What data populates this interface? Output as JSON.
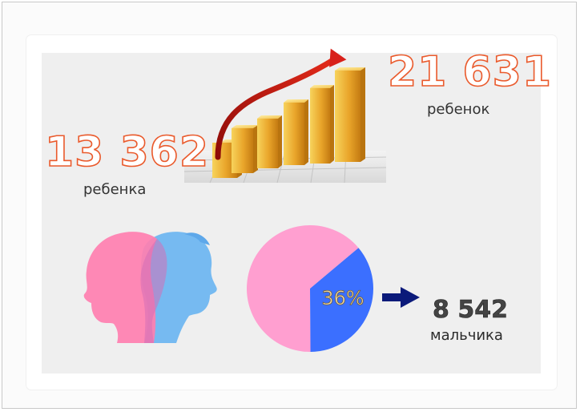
{
  "stats": {
    "before_value": "13 362",
    "before_caption": "ребенка",
    "after_value": "21 631",
    "after_caption": "ребенок",
    "boys_value": "8 542",
    "boys_caption": "мальчика"
  },
  "colors": {
    "number_outline": "#ea5a2c",
    "pie_girls": "#ff9fd0",
    "pie_boys": "#3b6fff",
    "girl_silhouette": "#ff7fb0",
    "boy_silhouette": "#6fb6f0",
    "arrow_dark": "#0b1a7a",
    "growth_arrow": "#cc1c12",
    "bars_gold": "#e8a72d"
  },
  "chart_data": [
    {
      "type": "pie",
      "labels": [
        "",
        ""
      ],
      "values": [
        64,
        36
      ],
      "slice_label": "36%",
      "colors": [
        "#ff9fd0",
        "#3b6fff"
      ]
    }
  ],
  "icons": [
    "growth-bars-icon",
    "girl-boy-silhouette-icon",
    "right-arrow-icon"
  ]
}
